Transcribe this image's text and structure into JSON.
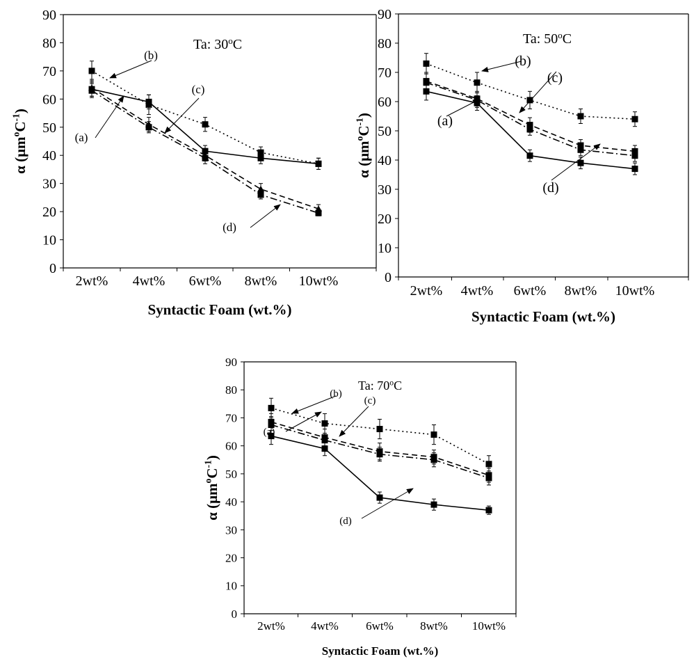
{
  "chart_data": [
    {
      "type": "line",
      "title": "",
      "annotation": "Ta: 30",
      "annotation_unit": "oC",
      "xlabel": "Syntactic Foam (wt.%)",
      "ylabel": "α (μmoC-1)",
      "ylabel_main": "α (μm",
      "ylabel_sup": "o",
      "ylabel_c": "C",
      "ylabel_exp": "-1",
      "ylabel_close": ")",
      "categories": [
        "2wt%",
        "4wt%",
        "6wt%",
        "8wt%",
        "10wt%"
      ],
      "ylim": [
        0,
        90
      ],
      "yticks": [
        0,
        10,
        20,
        30,
        40,
        50,
        60,
        70,
        80,
        90
      ],
      "legend": "none",
      "series": [
        {
          "label": "(a)",
          "values": [
            63.5,
            59,
            41.5,
            39,
            37
          ],
          "errors": [
            2.5,
            2.5,
            2,
            2,
            2
          ],
          "style": "solid",
          "marker": "square"
        },
        {
          "label": "(b)",
          "values": [
            70,
            58,
            51,
            41,
            37
          ],
          "errors": [
            3.5,
            3.5,
            2.5,
            2,
            2
          ],
          "style": "dotted",
          "marker": "square"
        },
        {
          "label": "(c)",
          "values": [
            64,
            51,
            40,
            28,
            21
          ],
          "errors": [
            3,
            2.5,
            2,
            2,
            1.5
          ],
          "style": "dashed",
          "marker": "triangle"
        },
        {
          "label": "(d)",
          "values": [
            63,
            50,
            39,
            26,
            19.5
          ],
          "errors": [
            2.5,
            2,
            2,
            1.5,
            1
          ],
          "style": "dashdot",
          "marker": "square"
        }
      ]
    },
    {
      "type": "line",
      "title": "",
      "annotation": "Ta: 50",
      "annotation_unit": "oC",
      "xlabel": "Syntactic Foam (wt.%)",
      "ylabel": "α (μmoC-1)",
      "ylabel_main": "α (μm",
      "ylabel_sup": "o",
      "ylabel_c": "C",
      "ylabel_exp": "-1",
      "ylabel_close": ")",
      "categories": [
        "2wt%",
        "4wt%",
        "6wt%",
        "8wt%",
        "10wt%"
      ],
      "ylim": [
        0,
        90
      ],
      "yticks": [
        0,
        10,
        20,
        30,
        40,
        50,
        60,
        70,
        80,
        90
      ],
      "legend": "none",
      "series": [
        {
          "label": "(a)",
          "values": [
            63.5,
            59.5,
            41.5,
            39,
            37
          ],
          "errors": [
            3,
            2.5,
            2,
            2,
            2
          ],
          "style": "solid",
          "marker": "square"
        },
        {
          "label": "(b)",
          "values": [
            73,
            66.5,
            60.5,
            55,
            54
          ],
          "errors": [
            3.5,
            3.5,
            3,
            2.5,
            2.5
          ],
          "style": "dotted",
          "marker": "square"
        },
        {
          "label": "(c)",
          "values": [
            67,
            61,
            52,
            45,
            43
          ],
          "errors": [
            3,
            2.5,
            2.5,
            2,
            2
          ],
          "style": "dashed",
          "marker": "square"
        },
        {
          "label": "(d)",
          "values": [
            66.5,
            60.5,
            50.5,
            43.5,
            41.5
          ],
          "errors": [
            3,
            2.5,
            2,
            2,
            2
          ],
          "style": "dashdot",
          "marker": "square"
        }
      ]
    },
    {
      "type": "line",
      "title": "",
      "annotation": "Ta: 70",
      "annotation_unit": "oC",
      "xlabel": "Syntactic Foam (wt.%)",
      "ylabel": "α (μmoC-1)",
      "ylabel_main": "α (μm",
      "ylabel_sup": "o",
      "ylabel_c": "C",
      "ylabel_exp": "-1",
      "ylabel_close": ")",
      "categories": [
        "2wt%",
        "4wt%",
        "6wt%",
        "8wt%",
        "10wt%"
      ],
      "ylim": [
        0,
        90
      ],
      "yticks": [
        0,
        10,
        20,
        30,
        40,
        50,
        60,
        70,
        80,
        90
      ],
      "legend": "none",
      "series": [
        {
          "label": "(a)",
          "values": [
            63.5,
            59,
            41.5,
            39,
            37
          ],
          "errors": [
            3,
            2.5,
            2,
            2,
            1.5
          ],
          "style": "solid",
          "marker": "square"
        },
        {
          "label": "(b)",
          "values": [
            73.5,
            68,
            66,
            64,
            53.5
          ],
          "errors": [
            3.5,
            3.5,
            3.5,
            3.5,
            3
          ],
          "style": "dotted",
          "marker": "square"
        },
        {
          "label": "(c)",
          "values": [
            68.5,
            63,
            58,
            56,
            49.5
          ],
          "errors": [
            3,
            3,
            3,
            2.5,
            2.5
          ],
          "style": "dashed",
          "marker": "square"
        },
        {
          "label": "(d)",
          "values": [
            67.5,
            62,
            57,
            55,
            48.5
          ],
          "errors": [
            3,
            2.5,
            2.5,
            2.5,
            2.5
          ],
          "style": "dashdot",
          "marker": "square"
        }
      ]
    }
  ]
}
